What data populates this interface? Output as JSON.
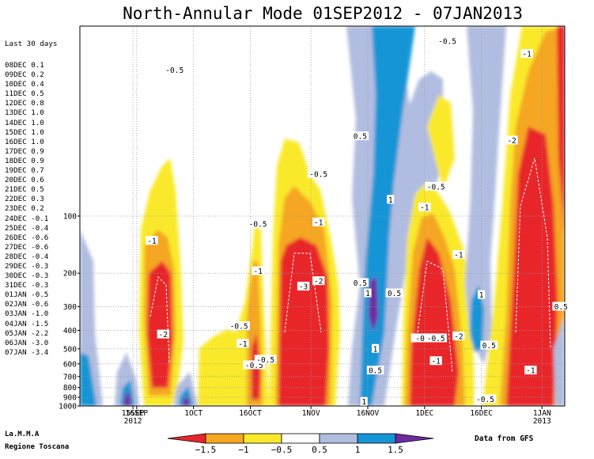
{
  "title": "North-Annular Mode 01SEP2012 - 07JAN2013",
  "sidebar": {
    "header": "Last 30 days",
    "rows": [
      {
        "date": "08DEC",
        "value": "0.1"
      },
      {
        "date": "09DEC",
        "value": "0.2"
      },
      {
        "date": "10DEC",
        "value": "0.4"
      },
      {
        "date": "11DEC",
        "value": "0.5"
      },
      {
        "date": "12DEC",
        "value": "0.8"
      },
      {
        "date": "13DEC",
        "value": "1.0"
      },
      {
        "date": "14DEC",
        "value": "1.0"
      },
      {
        "date": "15DEC",
        "value": "1.0"
      },
      {
        "date": "16DEC",
        "value": "1.0"
      },
      {
        "date": "17DEC",
        "value": "0.9"
      },
      {
        "date": "18DEC",
        "value": "0.9"
      },
      {
        "date": "19DEC",
        "value": "0.7"
      },
      {
        "date": "20DEC",
        "value": "0.6"
      },
      {
        "date": "21DEC",
        "value": "0.5"
      },
      {
        "date": "22DEC",
        "value": "0.3"
      },
      {
        "date": "23DEC",
        "value": "0.2"
      },
      {
        "date": "24DEC",
        "value": "-0.1"
      },
      {
        "date": "25DEC",
        "value": "-0.4"
      },
      {
        "date": "26DEC",
        "value": "-0.6"
      },
      {
        "date": "27DEC",
        "value": "-0.6"
      },
      {
        "date": "28DEC",
        "value": "-0.4"
      },
      {
        "date": "29DEC",
        "value": "-0.3"
      },
      {
        "date": "30DEC",
        "value": "-0.3"
      },
      {
        "date": "31DEC",
        "value": "-0.3"
      },
      {
        "date": "01JAN",
        "value": "-0.5"
      },
      {
        "date": "02JAN",
        "value": "-0.6"
      },
      {
        "date": "03JAN",
        "value": "-1.0"
      },
      {
        "date": "04JAN",
        "value": "-1.5"
      },
      {
        "date": "05JAN",
        "value": "-2.2"
      },
      {
        "date": "06JAN",
        "value": "-3.0"
      },
      {
        "date": "07JAN",
        "value": "-3.4"
      }
    ]
  },
  "footer": {
    "left_line1": "La.M.M.A",
    "left_line2": "Regione Toscana",
    "right": "Data from GFS"
  },
  "colors": {
    "lt_m1_5": "#e8262a",
    "m1_5_to_m1": "#f5a623",
    "m1_to_m0_5": "#f9e92a",
    "m0_5_to_0_5": "#ffffff",
    "p0_5_to_1": "#b1bde0",
    "p1_to_1_5": "#1695d6",
    "gt_1_5": "#6f2ba0"
  },
  "chart_data": {
    "type": "heatmap",
    "title": "North-Annular Mode 01SEP2012 - 07JAN2013",
    "x_ticks": [
      {
        "date": "2012-09-15",
        "label": "15SEP",
        "sub": "2012"
      },
      {
        "date": "2012-09-16",
        "label": "16SEP"
      },
      {
        "date": "2012-10-01",
        "label": "1OCT"
      },
      {
        "date": "2012-10-16",
        "label": "16OCT"
      },
      {
        "date": "2012-11-01",
        "label": "1NOV"
      },
      {
        "date": "2012-11-16",
        "label": "16NOV"
      },
      {
        "date": "2012-12-01",
        "label": "1DEC"
      },
      {
        "date": "2012-12-16",
        "label": "16DEC"
      },
      {
        "date": "2013-01-01",
        "label": "1JAN",
        "sub": "2013"
      }
    ],
    "xlim": [
      "2012-09-01",
      "2013-01-07"
    ],
    "ylabel": "",
    "y_scale": "log",
    "ylim": [
      10,
      1000
    ],
    "y_ticks": [
      100,
      200,
      300,
      400,
      500,
      600,
      700,
      800,
      900,
      1000
    ],
    "legend_levels": [
      "-1.5",
      "-1",
      "-0.5",
      "0.5",
      "1",
      "1.5"
    ],
    "contour_labels": [
      {
        "text": "-0.5",
        "date": "2012-09-26",
        "p": 17
      },
      {
        "text": "-1",
        "date": "2012-09-20",
        "p": 135
      },
      {
        "text": "-2",
        "date": "2012-09-23",
        "p": 420
      },
      {
        "text": "-0.5",
        "date": "2012-10-13",
        "p": 380
      },
      {
        "text": "-1",
        "date": "2012-10-14",
        "p": 470
      },
      {
        "text": "-0.5",
        "date": "2012-10-18",
        "p": 110
      },
      {
        "text": "-1",
        "date": "2012-10-18",
        "p": 195
      },
      {
        "text": "-0.5",
        "date": "2012-10-17",
        "p": 610
      },
      {
        "text": "-0.5",
        "date": "2012-10-20",
        "p": 570
      },
      {
        "text": "-0.5",
        "date": "2012-11-03",
        "p": 60
      },
      {
        "text": "-1",
        "date": "2012-11-03",
        "p": 108
      },
      {
        "text": "-3",
        "date": "2012-10-30",
        "p": 235
      },
      {
        "text": "-2",
        "date": "2012-11-03",
        "p": 220
      },
      {
        "text": "0.5",
        "date": "2012-11-14",
        "p": 38
      },
      {
        "text": "1",
        "date": "2012-11-22",
        "p": 82
      },
      {
        "text": "0.5",
        "date": "2012-11-14",
        "p": 225
      },
      {
        "text": "1",
        "date": "2012-11-16",
        "p": 255
      },
      {
        "text": "0.5",
        "date": "2012-11-23",
        "p": 255
      },
      {
        "text": "1",
        "date": "2012-11-18",
        "p": 500
      },
      {
        "text": "0.5",
        "date": "2012-11-18",
        "p": 650
      },
      {
        "text": "1",
        "date": "2012-11-15",
        "p": 950
      },
      {
        "text": "-0.5",
        "date": "2012-12-04",
        "p": 70
      },
      {
        "text": "-1",
        "date": "2012-12-01",
        "p": 90
      },
      {
        "text": "-0.5",
        "date": "2012-12-07",
        "p": 12
      },
      {
        "text": "-1",
        "date": "2012-12-10",
        "p": 160
      },
      {
        "text": "-1",
        "date": "2012-11-29",
        "p": 440
      },
      {
        "text": "-0.5",
        "date": "2012-12-01",
        "p": 440
      },
      {
        "text": "-0.5",
        "date": "2012-12-04",
        "p": 440
      },
      {
        "text": "-2",
        "date": "2012-12-10",
        "p": 430
      },
      {
        "text": "-1",
        "date": "2012-12-04",
        "p": 580
      },
      {
        "text": "1",
        "date": "2012-12-16",
        "p": 260
      },
      {
        "text": "0.5",
        "date": "2012-12-18",
        "p": 480
      },
      {
        "text": "-0.5",
        "date": "2012-12-17",
        "p": 920
      },
      {
        "text": "-1",
        "date": "2012-12-28",
        "p": 14
      },
      {
        "text": "-2",
        "date": "2012-12-24",
        "p": 40
      },
      {
        "text": "-1",
        "date": "2012-12-29",
        "p": 650
      },
      {
        "text": "0.5",
        "date": "2013-01-06",
        "p": 300
      }
    ]
  }
}
